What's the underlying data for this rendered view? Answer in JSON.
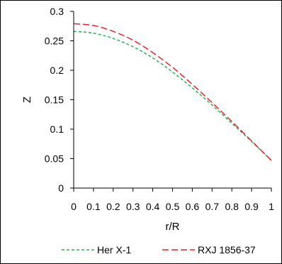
{
  "chart_data": {
    "type": "line",
    "xlabel": "r/R",
    "ylabel": "Z",
    "xlim": [
      0,
      1
    ],
    "ylim": [
      0,
      0.3
    ],
    "xticks": [
      "0",
      "0.1",
      "0.2",
      "0.3",
      "0.4",
      "0.5",
      "0.6",
      "0.7",
      "0.8",
      "0.9",
      "1"
    ],
    "yticks": [
      "0",
      "0.05",
      "0.1",
      "0.15",
      "0.2",
      "0.25",
      "0.3"
    ],
    "grid": false,
    "legend": "bottom",
    "x": [
      0,
      0.1,
      0.2,
      0.3,
      0.4,
      0.5,
      0.6,
      0.7,
      0.8,
      0.9,
      1.0
    ],
    "series": [
      {
        "name": "Her X-1",
        "color": "#2eae52",
        "dash": "dashed",
        "values": [
          0.266,
          0.263,
          0.254,
          0.24,
          0.221,
          0.197,
          0.17,
          0.141,
          0.11,
          0.079,
          0.047
        ]
      },
      {
        "name": "RXJ 1856-37",
        "color": "#e0252b",
        "dash": "long-dashed",
        "values": [
          0.279,
          0.276,
          0.266,
          0.251,
          0.23,
          0.205,
          0.176,
          0.145,
          0.113,
          0.08,
          0.047
        ]
      }
    ]
  }
}
